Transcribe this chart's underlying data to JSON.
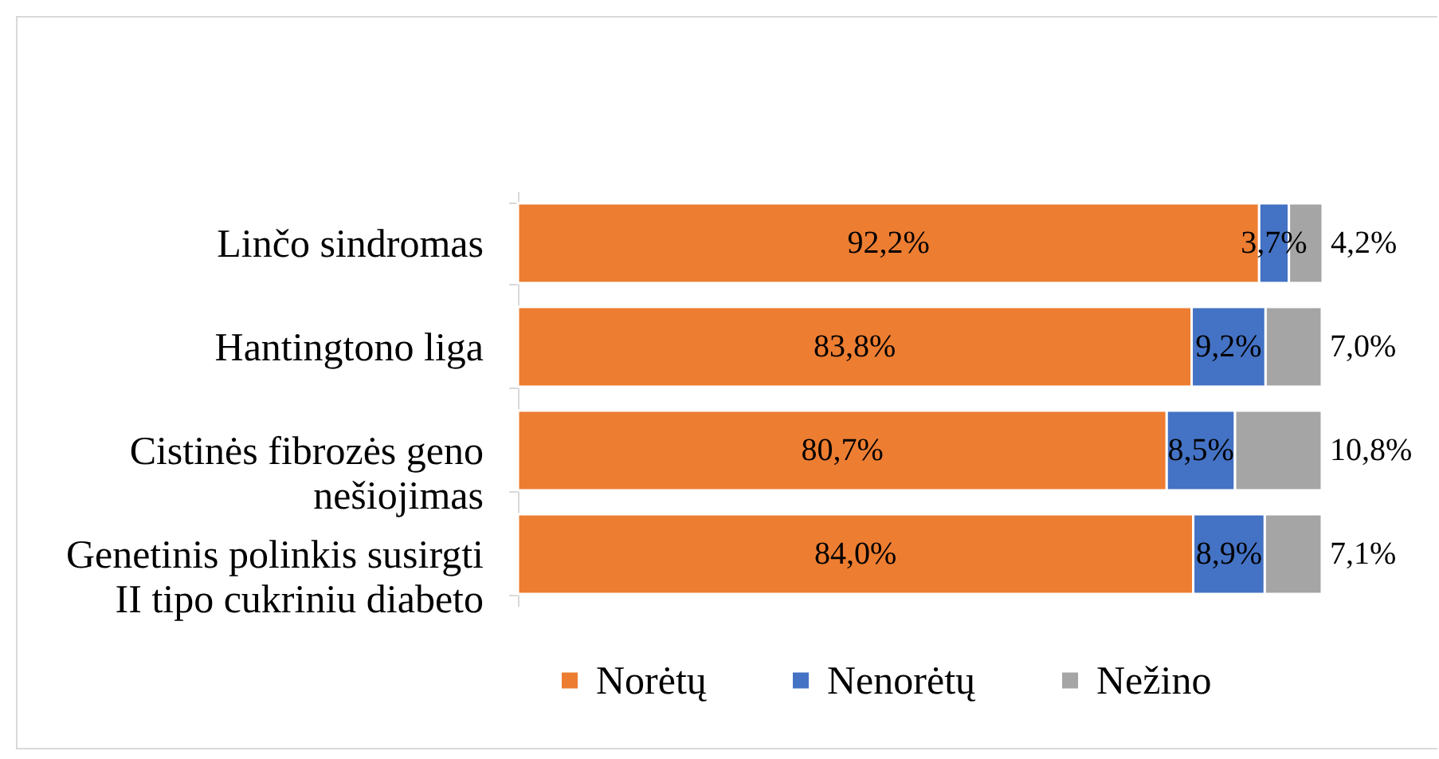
{
  "chart_data": {
    "type": "bar",
    "orientation": "horizontal",
    "stacked": true,
    "categories": [
      "Linčo sindromas",
      "Hantingtono liga",
      "Cistinės fibrozės geno nešiojimas",
      "Genetinis polinkis susirgti II tipo cukriniu diabeto"
    ],
    "series": [
      {
        "name": "Norėtų",
        "color": "#ed7d31",
        "values": [
          92.2,
          83.8,
          80.7,
          84.0
        ],
        "value_labels": [
          "92,2%",
          "83,8%",
          "80,7%",
          "84,0%"
        ]
      },
      {
        "name": "Nenorėtų",
        "color": "#4472c4",
        "values": [
          3.7,
          9.2,
          8.5,
          8.9
        ],
        "value_labels": [
          "3,7%",
          "9,2%",
          "8,5%",
          "8,9%"
        ]
      },
      {
        "name": "Nežino",
        "color": "#a5a5a5",
        "values": [
          4.2,
          7.0,
          10.8,
          7.1
        ],
        "value_labels": [
          "4,2%",
          "7,0%",
          "10,8%",
          "7,1%"
        ]
      }
    ],
    "legend": "bottom"
  }
}
